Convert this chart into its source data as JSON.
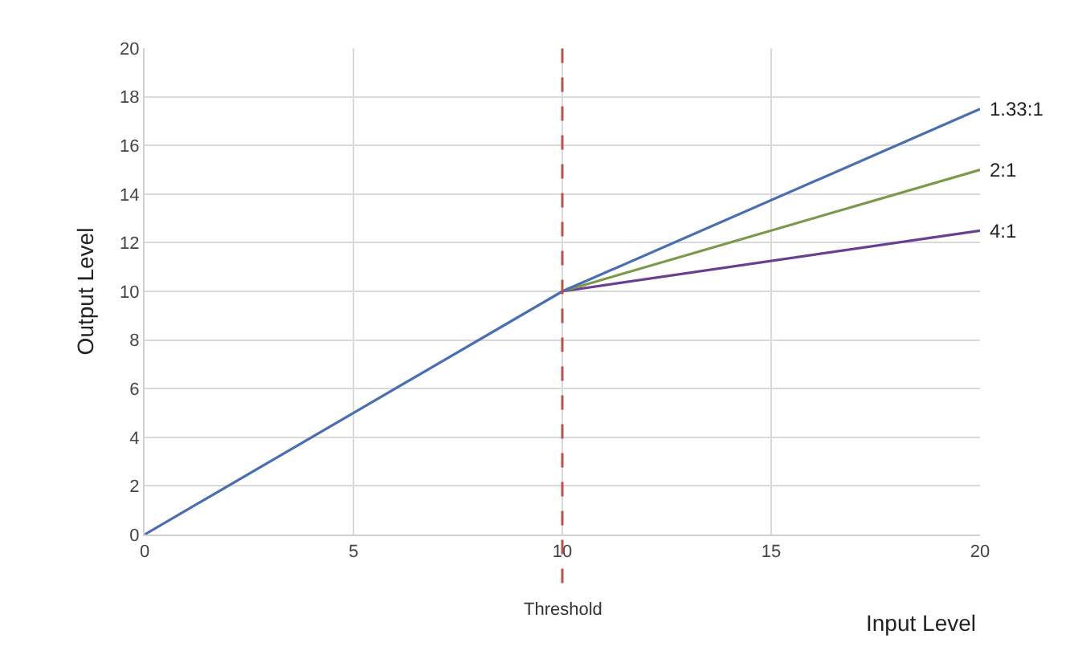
{
  "chart_data": {
    "type": "line",
    "xlabel": "Input Level",
    "ylabel": "Output Level",
    "series": [
      {
        "name": "1.33:1",
        "color": "#4a6fb0",
        "x": [
          0,
          10,
          20
        ],
        "values": [
          0,
          10,
          17.5
        ]
      },
      {
        "name": "2:1",
        "color": "#7a9a4a",
        "x": [
          10,
          20
        ],
        "values": [
          10,
          15
        ]
      },
      {
        "name": "4:1",
        "color": "#6a3f8f",
        "x": [
          10,
          20
        ],
        "values": [
          10,
          12.5
        ]
      }
    ],
    "xlim": [
      0,
      20
    ],
    "xticks": [
      0,
      5,
      10,
      15,
      20
    ],
    "ylim": [
      0,
      20
    ],
    "yticks": [
      0,
      2,
      4,
      6,
      8,
      10,
      12,
      14,
      16,
      18,
      20
    ],
    "ref_lines": [
      {
        "axis": "x",
        "value": 10,
        "label": "Threshold",
        "color": "#c0504d",
        "line_style": "dashed"
      }
    ],
    "grid": true,
    "legend": false,
    "marker": "none",
    "line_style": "solid"
  }
}
